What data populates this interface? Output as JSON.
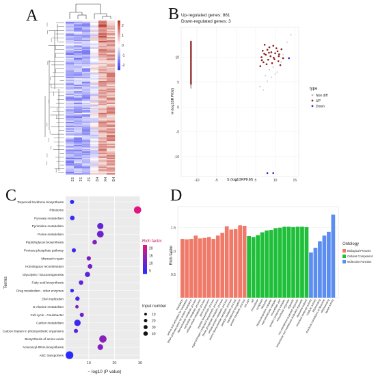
{
  "panels": {
    "A": "A",
    "B": "B",
    "C": "C",
    "D": "D"
  },
  "colors": {
    "heat_low": "#3b3bf0",
    "heat_mid": "#ffffff",
    "heat_high": "#c0392b",
    "nondiff": "#b9b9b9",
    "up": "#8b1a1a",
    "down": "#2626c8",
    "bp": "#f07a6a",
    "cc": "#1fbf3a",
    "mf": "#5b8ef0",
    "rich_low": "#2a2aff",
    "rich_high": "#e0157f"
  },
  "chart_data": [
    {
      "type": "heatmap",
      "panel": "A",
      "columns": [
        "S3",
        "S1",
        "S2",
        "H2",
        "H4",
        "H3"
      ],
      "colorbar_ticks": [
        "2",
        "1",
        "0",
        "-1",
        "-2"
      ],
      "colorbar_range": [
        -2.5,
        2.5
      ]
    },
    {
      "type": "scatter",
      "panel": "B",
      "annotations": [
        "Up-regulated genes: 861",
        "Down-regulated genes: 3"
      ],
      "xlabel": "S (log10RPKM)",
      "ylabel": "H (log10RPKM)",
      "xticks": [
        -10,
        -5,
        0,
        5,
        10,
        15
      ],
      "yticks": [
        -10,
        -5,
        0,
        5,
        10
      ],
      "xlim": [
        -14,
        16
      ],
      "ylim": [
        -14,
        16
      ],
      "legend_title": "type",
      "legend": [
        "Non diff",
        "UP",
        "Down"
      ],
      "series": [
        {
          "name": "Non diff",
          "points": [
            [
              6.1,
              4.1
            ],
            [
              7.0,
              3.4
            ],
            [
              8.0,
              5.2
            ],
            [
              9.0,
              6.0
            ],
            [
              10.5,
              7.0
            ],
            [
              11.5,
              9.0
            ],
            [
              13.0,
              13.0
            ],
            [
              14.0,
              14.5
            ],
            [
              8.5,
              7.5
            ],
            [
              9.5,
              8.0
            ],
            [
              10.0,
              6.6
            ],
            [
              7.5,
              6.3
            ],
            [
              12.0,
              10.5
            ]
          ]
        },
        {
          "name": "UP",
          "points": [
            [
              6.2,
              8.2
            ],
            [
              6.5,
              10.0
            ],
            [
              6.8,
              11.3
            ],
            [
              7.0,
              9.0
            ],
            [
              7.3,
              12.5
            ],
            [
              7.6,
              10.5
            ],
            [
              8.0,
              11.5
            ],
            [
              8.2,
              9.5
            ],
            [
              8.5,
              12.0
            ],
            [
              8.8,
              10.2
            ],
            [
              9.0,
              11.0
            ],
            [
              9.2,
              8.8
            ],
            [
              9.5,
              12.3
            ],
            [
              9.8,
              9.6
            ],
            [
              10.0,
              10.8
            ],
            [
              10.3,
              11.8
            ],
            [
              10.6,
              11.2
            ],
            [
              10.8,
              9.2
            ],
            [
              11.0,
              10.6
            ],
            [
              11.3,
              8.4
            ],
            [
              11.6,
              11.6
            ],
            [
              12.0,
              9.8
            ],
            [
              7.8,
              8.6
            ],
            [
              6.6,
              9.4
            ],
            [
              8.4,
              10.9
            ],
            [
              9.6,
              9.9
            ],
            [
              10.9,
              10.2
            ],
            [
              7.2,
              10.7
            ]
          ]
        },
        {
          "name": "Down",
          "points": [
            [
              8.0,
              -13.3
            ],
            [
              9.5,
              -13.3
            ],
            [
              13.5,
              9.8
            ]
          ]
        }
      ]
    },
    {
      "type": "scatter",
      "panel": "C",
      "xlabel": "− log10 (P value)",
      "ylabel": "Terms",
      "xticks": [
        10,
        20,
        30
      ],
      "xlim": [
        1,
        30
      ],
      "legend_rich_title": "Rich factor",
      "legend_rich_ticks": [
        "20",
        "15",
        "10",
        "5"
      ],
      "legend_size_title": "Input number",
      "legend_size_values": [
        10,
        20,
        30,
        40
      ],
      "terms": [
        {
          "term": "Terpenoid backbone biosynthesis",
          "p": 3.5,
          "n": 6,
          "rich": 3
        },
        {
          "term": "Ribosome",
          "p": 29.0,
          "n": 30,
          "rich": 22
        },
        {
          "term": "Pyruvate metabolism",
          "p": 3.6,
          "n": 8,
          "rich": 4
        },
        {
          "term": "Pyrimidine metabolism",
          "p": 14.5,
          "n": 20,
          "rich": 9
        },
        {
          "term": "Purine metabolism",
          "p": 14.5,
          "n": 25,
          "rich": 10
        },
        {
          "term": "Peptidoglycan biosynthesis",
          "p": 12.3,
          "n": 8,
          "rich": 12
        },
        {
          "term": "Pentose phosphate pathway",
          "p": 4.2,
          "n": 6,
          "rich": 5
        },
        {
          "term": "Mismatch repair",
          "p": 10.0,
          "n": 7,
          "rich": 12
        },
        {
          "term": "Homologous recombination",
          "p": 10.5,
          "n": 9,
          "rich": 11
        },
        {
          "term": "Glycolysis / Gluconeogenesis",
          "p": 9.5,
          "n": 12,
          "rich": 8
        },
        {
          "term": "Fatty acid biosynthesis",
          "p": 7.0,
          "n": 8,
          "rich": 9
        },
        {
          "term": "Drug metabolism - other enzymes",
          "p": 3.5,
          "n": 4,
          "rich": 4
        },
        {
          "term": "DNA replication",
          "p": 5.6,
          "n": 7,
          "rich": 7
        },
        {
          "term": "D-Alanine metabolism",
          "p": 5.4,
          "n": 3,
          "rich": 12
        },
        {
          "term": "Cell cycle - Caulobacter",
          "p": 7.3,
          "n": 6,
          "rich": 10
        },
        {
          "term": "Carbon metabolism",
          "p": 5.6,
          "n": 22,
          "rich": 5
        },
        {
          "term": "Carbon fixation in photosynthetic organisms",
          "p": 5.0,
          "n": 6,
          "rich": 8
        },
        {
          "term": "Biosynthesis of amino acids",
          "p": 15.5,
          "n": 30,
          "rich": 13
        },
        {
          "term": "Aminoacyl-tRNA biosynthesis",
          "p": 14.5,
          "n": 15,
          "rich": 12
        },
        {
          "term": "ABC transporters",
          "p": 2.5,
          "n": 35,
          "rich": 3
        }
      ]
    },
    {
      "type": "bar",
      "panel": "D",
      "ylabel": "Rich factor",
      "yticks": [
        0.5,
        1.0,
        1.5
      ],
      "ylim": [
        0,
        1.95
      ],
      "legend_title": "Ontology",
      "legend": [
        "Biological Process",
        "Cellular Component",
        "Molecular Function"
      ],
      "bars": [
        {
          "label": "translation",
          "group": "Biological Process",
          "value": 1.26
        },
        {
          "label": "amino acid activation for translation",
          "group": "Biological Process",
          "value": 1.25
        },
        {
          "label": "tRNA aminoacylation for protein translation",
          "group": "Biological Process",
          "value": 1.26
        },
        {
          "label": "ribonucleotide metabolic process",
          "group": "Biological Process",
          "value": 1.33
        },
        {
          "label": "nucleotide metabolic process",
          "group": "Biological Process",
          "value": 1.27
        },
        {
          "label": "cellular amide metabolic process",
          "group": "Biological Process",
          "value": 1.28
        },
        {
          "label": "gene expression",
          "group": "Biological Process",
          "value": 1.3
        },
        {
          "label": "peptide biosynthetic process",
          "group": "Biological Process",
          "value": 1.26
        },
        {
          "label": "organonitrogen compound biosynthetic process",
          "group": "Biological Process",
          "value": 1.33
        },
        {
          "label": "ribose phosphate metabolic process",
          "group": "Biological Process",
          "value": 1.39
        },
        {
          "label": "cellular protein metabolic process",
          "group": "Biological Process",
          "value": 1.53
        },
        {
          "label": "purine ribonucleotide metabolic process",
          "group": "Biological Process",
          "value": 1.46
        },
        {
          "label": "peptide metabolic process",
          "group": "Biological Process",
          "value": 1.47
        },
        {
          "label": "translational elongation",
          "group": "Biological Process",
          "value": 1.55
        },
        {
          "label": "protein metabolic process",
          "group": "Biological Process",
          "value": 1.54
        },
        {
          "label": "cell part",
          "group": "Cellular Component",
          "value": 1.32
        },
        {
          "label": "cell",
          "group": "Cellular Component",
          "value": 1.3
        },
        {
          "label": "intracellular",
          "group": "Cellular Component",
          "value": 1.34
        },
        {
          "label": "cytoplasm",
          "group": "Cellular Component",
          "value": 1.4
        },
        {
          "label": "ribosome",
          "group": "Cellular Component",
          "value": 1.44
        },
        {
          "label": "ribonucleoprotein complex",
          "group": "Cellular Component",
          "value": 1.45
        },
        {
          "label": "macromolecular complex",
          "group": "Cellular Component",
          "value": 1.49
        },
        {
          "label": "intracellular part",
          "group": "Cellular Component",
          "value": 1.5
        },
        {
          "label": "protein-containing complex",
          "group": "Cellular Component",
          "value": 1.52
        },
        {
          "label": "intracellular organelle",
          "group": "Cellular Component",
          "value": 1.52
        },
        {
          "label": "organelle",
          "group": "Cellular Component",
          "value": 1.51
        },
        {
          "label": "non-membrane-bounded organelle",
          "group": "Cellular Component",
          "value": 1.52
        },
        {
          "label": "intracellular non-membrane-bounded organelle",
          "group": "Cellular Component",
          "value": 1.52
        },
        {
          "label": "ribosomal subunit",
          "group": "Cellular Component",
          "value": 1.51
        },
        {
          "label": "structural molecule activity",
          "group": "Molecular Function",
          "value": 0.97
        },
        {
          "label": "catalytic activity",
          "group": "Molecular Function",
          "value": 1.07
        },
        {
          "label": "RNA binding",
          "group": "Molecular Function",
          "value": 1.21
        },
        {
          "label": "structural constituent of ribosome",
          "group": "Molecular Function",
          "value": 1.33
        },
        {
          "label": "rRNA binding",
          "group": "Molecular Function",
          "value": 1.41
        },
        {
          "label": "ligase activity",
          "group": "Molecular Function",
          "value": 1.78
        }
      ]
    }
  ]
}
